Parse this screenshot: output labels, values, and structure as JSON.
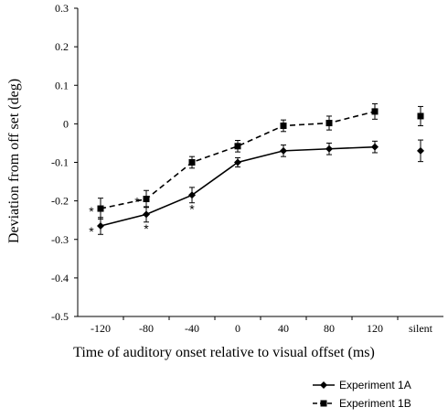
{
  "chart_data": {
    "type": "line",
    "xlabel": "Time of auditory onset relative to visual offset (ms)",
    "ylabel": "Deviation from off set (deg)",
    "ylim": [
      -0.5,
      0.3
    ],
    "yticks": [
      "0.3",
      "0.2",
      "0.1",
      "0",
      "-0.1",
      "-0.2",
      "-0.3",
      "-0.4",
      "-0.5"
    ],
    "categories": [
      "-120",
      "-80",
      "-40",
      "0",
      "40",
      "80",
      "120",
      "silent"
    ],
    "grid": false,
    "legend_position": "bottom-right",
    "series": [
      {
        "name": "Experiment 1A",
        "line_style": "solid",
        "marker": "diamond",
        "connected_points": 7,
        "values": [
          -0.265,
          -0.235,
          -0.185,
          -0.1,
          -0.07,
          -0.065,
          -0.06,
          -0.07
        ],
        "errors": [
          0.022,
          0.02,
          0.02,
          0.012,
          0.015,
          0.015,
          0.015,
          0.028
        ]
      },
      {
        "name": "Experiment 1B",
        "line_style": "dashed",
        "marker": "square",
        "connected_points": 7,
        "values": [
          -0.22,
          -0.195,
          -0.1,
          -0.058,
          -0.005,
          0.002,
          0.032,
          0.02
        ],
        "errors": [
          0.027,
          0.022,
          0.015,
          0.015,
          0.015,
          0.018,
          0.02,
          0.025
        ]
      }
    ],
    "annotations": [
      {
        "text": "*",
        "category": "-120",
        "series": "Experiment 1A"
      },
      {
        "text": "*",
        "category": "-120",
        "series": "Experiment 1B"
      },
      {
        "text": "*",
        "category": "-80",
        "series": "Experiment 1A"
      },
      {
        "text": "*",
        "category": "-80",
        "series": "Experiment 1B"
      },
      {
        "text": "*",
        "category": "-40",
        "series": "Experiment 1A"
      }
    ]
  }
}
